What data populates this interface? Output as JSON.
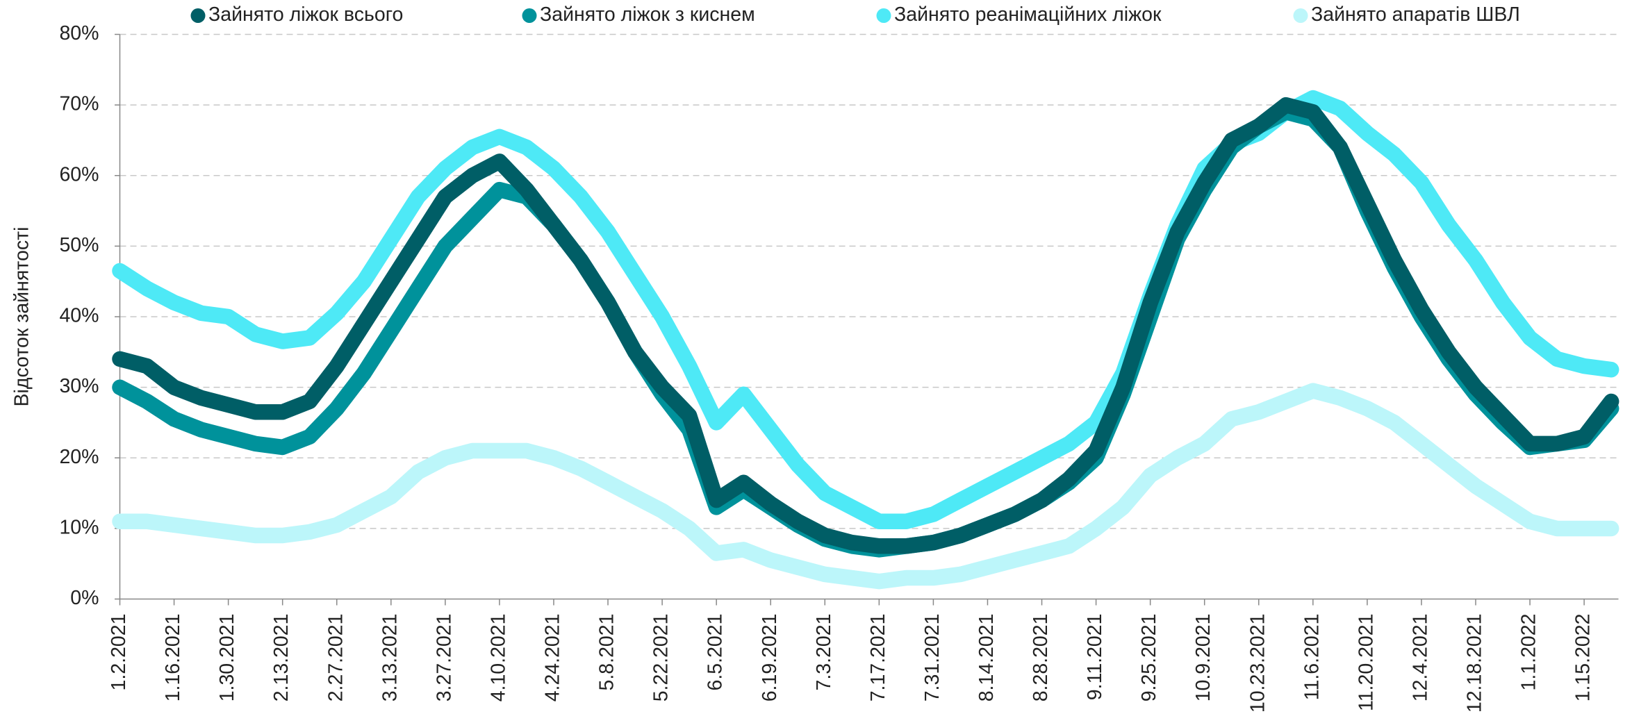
{
  "chart_data": {
    "type": "line",
    "y_label": "Відсоток зайнятості",
    "legend": "top",
    "grid": true,
    "ylim": [
      0,
      80
    ],
    "yticks": [
      {
        "value": 0,
        "label": "0%"
      },
      {
        "value": 10,
        "label": "10%"
      },
      {
        "value": 20,
        "label": "20%"
      },
      {
        "value": 30,
        "label": "30%"
      },
      {
        "value": 40,
        "label": "40%"
      },
      {
        "value": 50,
        "label": "50%"
      },
      {
        "value": 60,
        "label": "60%"
      },
      {
        "value": 70,
        "label": "70%"
      },
      {
        "value": 80,
        "label": "80%"
      }
    ],
    "categories": [
      "1.2.2021",
      null,
      "1.16.2021",
      null,
      "1.30.2021",
      null,
      "2.13.2021",
      null,
      "2.27.2021",
      null,
      "3.13.2021",
      null,
      "3.27.2021",
      null,
      "4.10.2021",
      null,
      "4.24.2021",
      null,
      "5.8.2021",
      null,
      "5.22.2021",
      null,
      "6.5.2021",
      null,
      "6.19.2021",
      null,
      "7.3.2021",
      null,
      "7.17.2021",
      null,
      "7.31.2021",
      null,
      "8.14.2021",
      null,
      "8.28.2021",
      null,
      "9.11.2021",
      null,
      "9.25.2021",
      null,
      "10.9.2021",
      null,
      "10.23.2021",
      null,
      "11.6.2021",
      null,
      "11.20.2021",
      null,
      "12.4.2021",
      null,
      "12.18.2021",
      null,
      "1.1.2022",
      null,
      "1.15.2022",
      null
    ],
    "series": [
      {
        "name": "Зайнято ліжок всього",
        "color": "#005e66",
        "values": [
          34,
          33,
          30,
          28.5,
          27.5,
          26.5,
          26.5,
          28,
          33,
          39,
          45,
          51,
          57,
          60,
          62,
          58,
          53,
          48,
          42,
          35,
          30,
          26,
          14,
          16.5,
          13.5,
          11,
          9,
          8,
          7.5,
          7.5,
          8,
          9,
          10.5,
          12,
          14,
          17,
          21,
          30,
          42,
          52,
          59,
          65,
          67,
          70,
          69,
          64,
          56,
          48,
          41,
          35,
          30,
          26,
          22,
          22,
          23,
          28
        ]
      },
      {
        "name": "Зайнято ліжок з киснем",
        "color": "#00929b",
        "values": [
          30,
          28,
          25.5,
          24,
          23,
          22,
          21.5,
          23,
          27,
          32,
          38,
          44,
          50,
          54,
          58,
          57,
          53,
          48,
          42,
          35,
          29,
          24,
          13,
          15.5,
          13,
          10.5,
          8.5,
          7.5,
          7,
          7.5,
          8,
          9,
          10.5,
          12,
          14,
          16.5,
          20,
          29,
          40,
          51,
          58,
          64,
          67,
          69,
          68,
          64,
          55,
          47,
          40,
          34,
          29,
          25,
          21.5,
          22,
          22.5,
          27
        ]
      },
      {
        "name": "Зайнято реанімаційних ліжок",
        "color": "#4ee9f6",
        "values": [
          46.5,
          44,
          42,
          40.5,
          40,
          37.5,
          36.5,
          37,
          40.5,
          45,
          51,
          57,
          61,
          64,
          65.5,
          64,
          61,
          57,
          52,
          46,
          40,
          33,
          25,
          29,
          24,
          19,
          15,
          13,
          11,
          11,
          12,
          14,
          16,
          18,
          20,
          22,
          25,
          32,
          43,
          53,
          61,
          64.5,
          66,
          69,
          71,
          69.5,
          66,
          63,
          59,
          53,
          48,
          42,
          37,
          34,
          33,
          32.5
        ]
      },
      {
        "name": "Зайнято апаратів ШВЛ",
        "color": "#bcf6fa",
        "values": [
          11,
          11,
          10.5,
          10,
          9.5,
          9,
          9,
          9.5,
          10.5,
          12.5,
          14.5,
          18,
          20,
          21,
          21,
          21,
          20,
          18.5,
          16.5,
          14.5,
          12.5,
          10,
          6.5,
          7,
          5.5,
          4.5,
          3.5,
          3,
          2.5,
          3,
          3,
          3.5,
          4.5,
          5.5,
          6.5,
          7.5,
          10,
          13,
          17.5,
          20,
          22,
          25.5,
          26.5,
          28,
          29.5,
          28.5,
          27,
          25,
          22,
          19,
          16,
          13.5,
          11,
          10,
          10,
          10
        ]
      }
    ]
  }
}
